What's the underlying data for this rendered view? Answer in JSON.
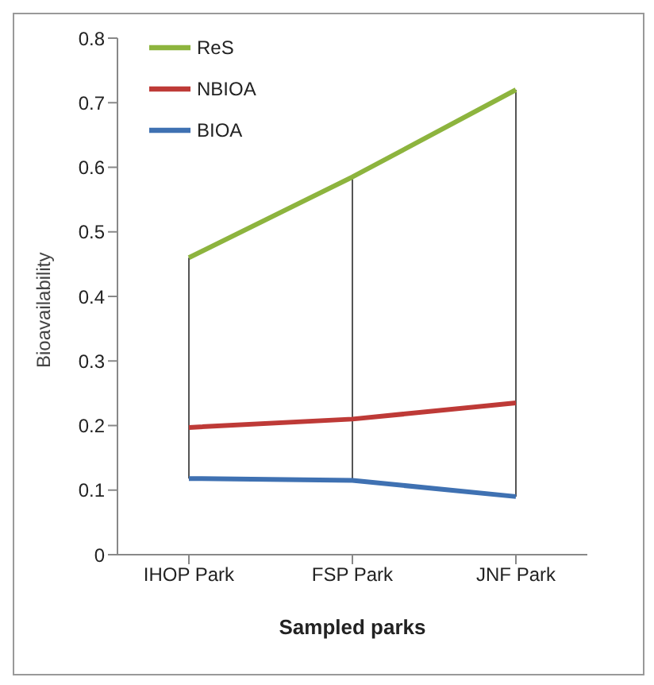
{
  "chart_data": {
    "type": "line",
    "xlabel": "Sampled parks",
    "ylabel": "Bioavailability",
    "categories": [
      "IHOP Park",
      "FSP Park",
      "JNF Park"
    ],
    "series": [
      {
        "name": "ReS",
        "color": "#8db43e",
        "values": [
          0.46,
          0.585,
          0.72
        ]
      },
      {
        "name": "NBIOA",
        "color": "#be3a37",
        "values": [
          0.197,
          0.21,
          0.235
        ]
      },
      {
        "name": "BIOA",
        "color": "#3f71b2",
        "values": [
          0.118,
          0.115,
          0.09
        ]
      }
    ],
    "ref_lines": [
      {
        "axis": "x",
        "value": "IHOP Park",
        "color": "#555555"
      },
      {
        "axis": "x",
        "value": "FSP Park",
        "color": "#555555"
      },
      {
        "axis": "x",
        "value": "JNF Park",
        "color": "#555555"
      }
    ],
    "ylim": [
      0,
      0.8
    ],
    "yticks": [
      0,
      0.1,
      0.2,
      0.3,
      0.4,
      0.5,
      0.6,
      0.7,
      0.8
    ],
    "legend": "top left",
    "marker": "none",
    "line_style": "solid",
    "grid": false
  }
}
